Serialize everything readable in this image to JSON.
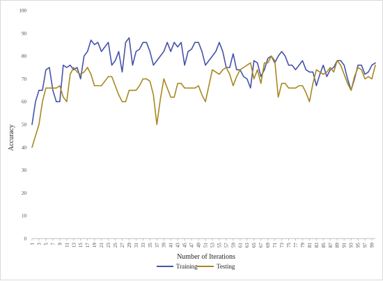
{
  "chart_data": {
    "type": "line",
    "title": "",
    "xlabel": "Number of Iterations",
    "ylabel": "Accuracy",
    "ylim": [
      0,
      100
    ],
    "yticks": [
      0,
      10,
      20,
      30,
      40,
      50,
      60,
      70,
      80,
      90,
      100
    ],
    "xlim": [
      1,
      100
    ],
    "xticks": [
      1,
      3,
      5,
      7,
      9,
      11,
      13,
      15,
      17,
      19,
      21,
      23,
      25,
      27,
      29,
      31,
      33,
      35,
      37,
      39,
      41,
      43,
      45,
      47,
      49,
      51,
      53,
      55,
      57,
      59,
      61,
      63,
      65,
      67,
      69,
      71,
      73,
      75,
      77,
      79,
      81,
      83,
      85,
      87,
      89,
      91,
      93,
      95,
      97,
      99
    ],
    "grid": false,
    "legend_position": "bottom",
    "series": [
      {
        "name": "Training",
        "color": "#4452a8",
        "values": [
          50,
          60,
          65,
          65,
          74,
          75,
          65,
          60,
          60,
          76,
          75,
          76,
          74,
          75,
          70,
          80,
          82,
          87,
          85,
          86,
          82,
          84,
          86,
          76,
          78,
          82,
          73,
          86,
          88,
          76,
          82,
          83,
          86,
          86,
          82,
          76,
          78,
          80,
          82,
          86,
          82,
          86,
          84,
          86,
          76,
          82,
          83,
          86,
          86,
          82,
          76,
          78,
          80,
          82,
          86,
          82,
          75,
          75,
          81,
          74,
          74,
          71,
          70,
          66,
          78,
          77,
          71,
          74,
          79,
          80,
          77,
          80,
          82,
          80,
          76,
          76,
          74,
          76,
          78,
          74,
          73,
          73,
          67,
          72,
          76,
          71,
          74,
          75,
          78,
          78,
          76,
          70,
          65,
          70,
          76,
          76,
          72,
          73,
          76,
          77
        ]
      },
      {
        "name": "Testing",
        "color": "#a8871f",
        "values": [
          40,
          45,
          50,
          60,
          66,
          66,
          66,
          66,
          67,
          62,
          60,
          72,
          75,
          73,
          72,
          73,
          75,
          72,
          67,
          67,
          67,
          69,
          71,
          71,
          67,
          63,
          60,
          60,
          65,
          65,
          65,
          67,
          70,
          70,
          69,
          63,
          50,
          61,
          70,
          66,
          62,
          62,
          68,
          68,
          66,
          66,
          66,
          66,
          67,
          63,
          60,
          67,
          74,
          73,
          72,
          74,
          75,
          72,
          67,
          71,
          74,
          75,
          76,
          77,
          70,
          74,
          68,
          77,
          77,
          80,
          78,
          62,
          68,
          68,
          66,
          66,
          66,
          67,
          67,
          64,
          60,
          68,
          74,
          73,
          72,
          73,
          75,
          73,
          78,
          76,
          72,
          68,
          65,
          71,
          75,
          74,
          70,
          71,
          70,
          76
        ]
      }
    ]
  }
}
